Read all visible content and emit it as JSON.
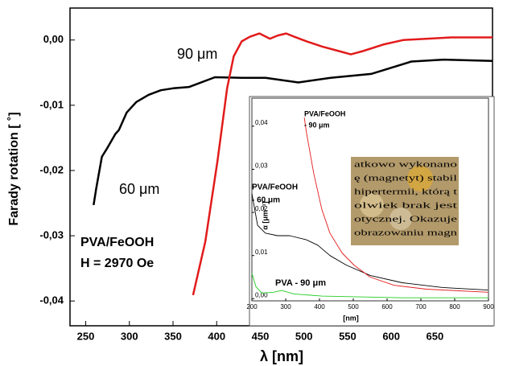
{
  "chart_data": [
    {
      "type": "line",
      "x_label": "λ [nm]",
      "y_label": "Farady rotation [ ˚]",
      "xlim": [
        232,
        716
      ],
      "xticks": [
        250,
        300,
        350,
        400,
        450,
        500,
        550,
        600,
        650
      ],
      "ylim": [
        -0.0438,
        0.0049
      ],
      "yticks": [
        {
          "value": 0,
          "label": "0,00"
        },
        {
          "value": -0.01,
          "label": "-0,01"
        },
        {
          "value": -0.02,
          "label": "-0,02"
        },
        {
          "value": -0.03,
          "label": "-0,03"
        },
        {
          "value": -0.04,
          "label": "-0,04"
        }
      ],
      "grid": false,
      "series": [
        {
          "color": "#000000",
          "x": [
            259,
            262,
            268.5,
            274,
            284,
            288,
            297,
            308,
            322,
            336,
            350,
            368.5,
            398,
            429,
            456,
            493.5,
            530.5,
            577,
            623,
            660,
            716
          ],
          "values": [
            -0.0253,
            -0.0228,
            -0.0179,
            -0.0167,
            -0.0144,
            -0.0138,
            -0.0111,
            -0.0095,
            -0.0084,
            -0.0077,
            -0.0074,
            -0.0072,
            -0.0057,
            -0.0058,
            -0.0058,
            -0.0065,
            -0.0058,
            -0.0052,
            -0.0033,
            -0.003,
            -0.0032
          ]
        },
        {
          "color": "#e21b1b",
          "x": [
            373,
            387,
            401,
            412,
            419.5,
            428.7,
            438,
            449,
            461,
            470,
            479.6,
            489,
            503,
            521,
            540,
            553.7,
            567.6,
            590.7,
            614,
            641.7,
            669,
            716
          ],
          "values": [
            -0.0391,
            -0.0309,
            -0.0185,
            -0.0074,
            -0.0025,
            -0.0002,
            0.0005,
            0.001,
            0.0002,
            0.0007,
            0.001,
            0.0005,
            -0.0002,
            -0.001,
            -0.0017,
            -0.0022,
            -0.0017,
            -0.0007,
            0,
            0.0002,
            0.0004,
            0.0004
          ]
        }
      ],
      "annotations": [
        {
          "text": [
            "90 μm"
          ]
        },
        {
          "text": [
            "60 μm"
          ]
        },
        {
          "text": [
            "PVA/FeOOH",
            "H = 2970 Oe"
          ]
        }
      ]
    },
    {
      "type": "line",
      "x_label": "[nm]",
      "y_label": "α [μm⁻¹]",
      "xlim": [
        200,
        900
      ],
      "xticks": [
        200,
        300,
        400,
        500,
        600,
        700,
        800,
        900
      ],
      "ylim": [
        -0.0005,
        0.0465
      ],
      "yticks": [
        {
          "value": 0,
          "label": "0,00"
        },
        {
          "value": 0.01,
          "label": "0,01"
        },
        {
          "value": 0.02,
          "label": "0,02"
        },
        {
          "value": 0.03,
          "label": "0,03"
        },
        {
          "value": 0.04,
          "label": "0,04"
        }
      ],
      "grid": false,
      "series": [
        {
          "color": "#000000",
          "x": [
            200,
            217,
            240,
            276,
            312,
            360,
            395,
            431,
            479,
            550,
            645,
            764,
            898
          ],
          "values": [
            0.0244,
            0.017,
            0.0152,
            0.0146,
            0.0146,
            0.0137,
            0.0124,
            0.01,
            0.0078,
            0.0054,
            0.0037,
            0.0026,
            0.002
          ]
        },
        {
          "color": "#e21b1b",
          "x": [
            355,
            362,
            383,
            407,
            431,
            467,
            502,
            550,
            621,
            717,
            898
          ],
          "values": [
            0.042,
            0.0383,
            0.029,
            0.0207,
            0.0152,
            0.0106,
            0.0078,
            0.005,
            0.0031,
            0.0022,
            0.0015
          ]
        },
        {
          "color": "#22cc22",
          "x": [
            200,
            212,
            229,
            264,
            288,
            324,
            407,
            645,
            898
          ],
          "values": [
            0.0059,
            0.0028,
            0.0013,
            0.0015,
            0.0019,
            0.0011,
            0.0006,
            0.0002,
            0.0002
          ]
        }
      ],
      "annotations": [
        {
          "text": [
            "PVA/FeOOH",
            "- 90 μm"
          ]
        },
        {
          "text": [
            "PVA/FeOOH",
            "- 60 μm"
          ]
        },
        {
          "text": [
            "PVA - 90 μm"
          ]
        }
      ],
      "photo_text": [
        "atkowo wykonano",
        "ę (magnetyt) stabil",
        "hipertermii, którą t",
        "olwiek brak jest",
        "otycznej. Okazuje",
        "obrazowaniu magn"
      ]
    }
  ]
}
